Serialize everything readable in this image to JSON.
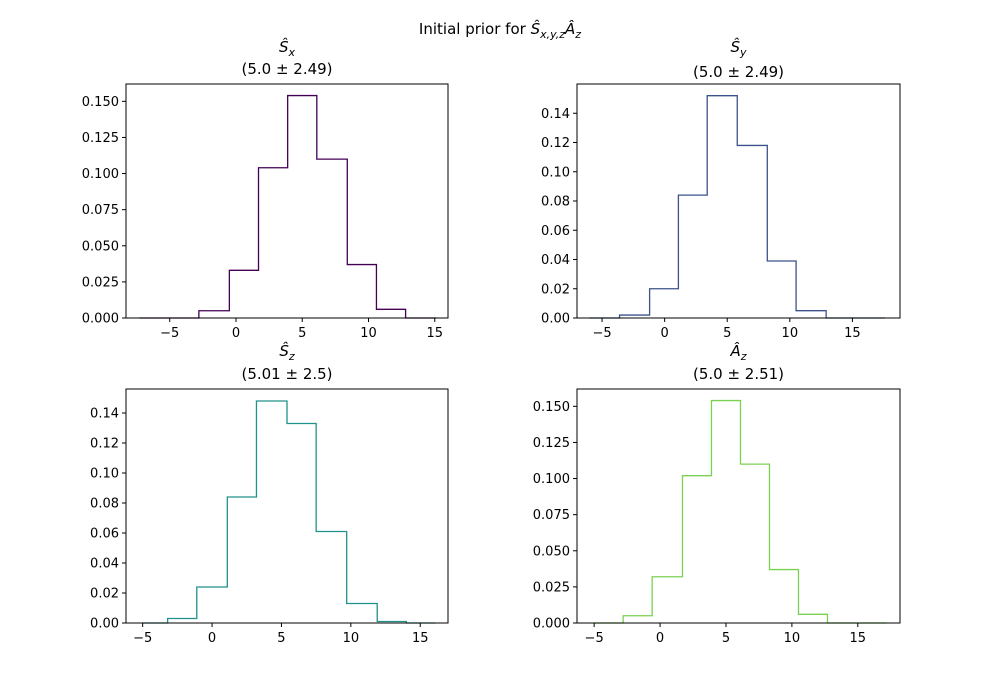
{
  "suptitle": "Initial prior for Ŝx,y,zÂz",
  "chart_data": [
    {
      "type": "histogram",
      "title_symbol": "Ŝx",
      "title_stats": "(5.0 ± 2.49)",
      "color": "#440154",
      "bin_edges": [
        -7.3,
        -5.0,
        -2.8,
        -0.5,
        1.7,
        3.9,
        6.1,
        8.4,
        10.6,
        12.8,
        15.1
      ],
      "values": [
        0.0,
        0.0,
        0.005,
        0.033,
        0.104,
        0.154,
        0.11,
        0.037,
        0.006,
        0.0
      ],
      "xlim": [
        -8.3,
        16.0
      ],
      "ylim": [
        0,
        0.162
      ],
      "xticks": [
        -5,
        0,
        5,
        10,
        15
      ],
      "yticks": [
        0.0,
        0.025,
        0.05,
        0.075,
        0.1,
        0.125,
        0.15
      ],
      "ytick_labels": [
        "0.000",
        "0.025",
        "0.050",
        "0.075",
        "0.100",
        "0.125",
        "0.150"
      ]
    },
    {
      "type": "histogram",
      "title_symbol": "Ŝy",
      "title_stats": "(5.0 ± 2.49)",
      "color": "#3b528b",
      "bin_edges": [
        -6.0,
        -3.6,
        -1.2,
        1.1,
        3.4,
        5.8,
        8.2,
        10.5,
        12.9,
        15.3,
        17.6
      ],
      "values": [
        0.0,
        0.002,
        0.02,
        0.084,
        0.152,
        0.118,
        0.039,
        0.005,
        0.0,
        0.0
      ],
      "xlim": [
        -7.0,
        18.8
      ],
      "ylim": [
        0,
        0.16
      ],
      "xticks": [
        -5,
        0,
        5,
        10,
        15
      ],
      "yticks": [
        0.0,
        0.02,
        0.04,
        0.06,
        0.08,
        0.1,
        0.12,
        0.14
      ],
      "ytick_labels": [
        "0.00",
        "0.02",
        "0.04",
        "0.06",
        "0.08",
        "0.10",
        "0.12",
        "0.14"
      ]
    },
    {
      "type": "histogram",
      "title_symbol": "Ŝz",
      "title_stats": "(5.01 ± 2.5)",
      "color": "#21918c",
      "bin_edges": [
        -5.0,
        -3.2,
        -1.1,
        1.1,
        3.2,
        5.4,
        7.5,
        9.7,
        11.9,
        14.0,
        16.1
      ],
      "values": [
        0.0,
        0.003,
        0.024,
        0.084,
        0.148,
        0.133,
        0.061,
        0.013,
        0.001,
        0.0
      ],
      "xlim": [
        -6.2,
        17.0
      ],
      "ylim": [
        0,
        0.156
      ],
      "xticks": [
        -5,
        0,
        5,
        10,
        15
      ],
      "yticks": [
        0.0,
        0.02,
        0.04,
        0.06,
        0.08,
        0.1,
        0.12,
        0.14
      ],
      "ytick_labels": [
        "0.00",
        "0.02",
        "0.04",
        "0.06",
        "0.08",
        "0.10",
        "0.12",
        "0.14"
      ]
    },
    {
      "type": "histogram",
      "title_symbol": "Âz",
      "title_stats": "(5.0 ± 2.51)",
      "color": "#7ad151",
      "bin_edges": [
        -5.0,
        -2.8,
        -0.6,
        1.7,
        3.9,
        6.1,
        8.3,
        10.5,
        12.7,
        15.0,
        17.2
      ],
      "values": [
        0.0,
        0.005,
        0.032,
        0.102,
        0.154,
        0.11,
        0.037,
        0.006,
        0.0,
        0.0
      ],
      "xlim": [
        -6.3,
        18.2
      ],
      "ylim": [
        0,
        0.162
      ],
      "xticks": [
        -5,
        0,
        5,
        10,
        15
      ],
      "yticks": [
        0.0,
        0.025,
        0.05,
        0.075,
        0.1,
        0.125,
        0.15
      ],
      "ytick_labels": [
        "0.000",
        "0.025",
        "0.050",
        "0.075",
        "0.100",
        "0.125",
        "0.150"
      ]
    }
  ]
}
